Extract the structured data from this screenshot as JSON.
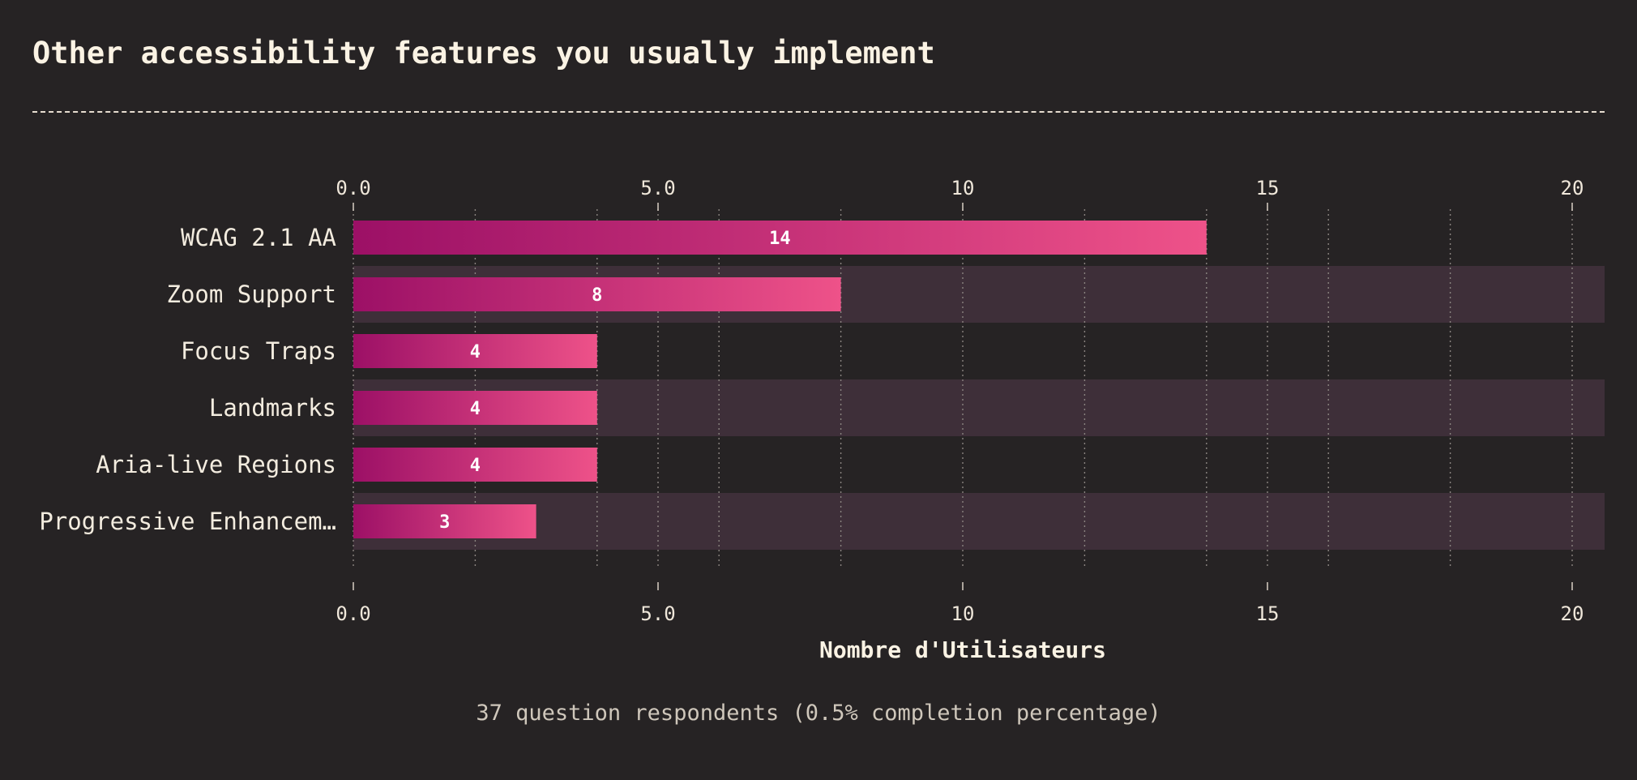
{
  "title": "Other accessibility features you usually implement",
  "footnote": "37 question respondents (0.5% completion percentage)",
  "colors": {
    "background": "#262324",
    "row_stripe": "#3e2f39",
    "bar_gradient_start": "#9c1066",
    "bar_gradient_end": "#ee5289",
    "grid": "#8a8480"
  },
  "chart_data": {
    "type": "bar",
    "orientation": "horizontal",
    "categories": [
      "WCAG 2.1 AA",
      "Zoom Support",
      "Focus Traps",
      "Landmarks",
      "Aria-live Regions",
      "Progressive Enhancem…"
    ],
    "values": [
      14,
      8,
      4,
      4,
      4,
      3
    ],
    "value_labels": [
      "14",
      "8",
      "4",
      "4",
      "4",
      "3"
    ],
    "xlabel": "Nombre d'Utilisateurs",
    "ylabel": "",
    "xlim": [
      0,
      20.5
    ],
    "major_ticks": [
      0,
      5,
      10,
      15,
      20
    ],
    "major_tick_labels": [
      "0.0",
      "5.0",
      "10",
      "15",
      "20"
    ],
    "minor_grid": [
      2,
      4,
      6,
      8,
      12,
      14,
      16,
      18
    ],
    "grid": true,
    "axis_labels_top_and_bottom": true
  }
}
